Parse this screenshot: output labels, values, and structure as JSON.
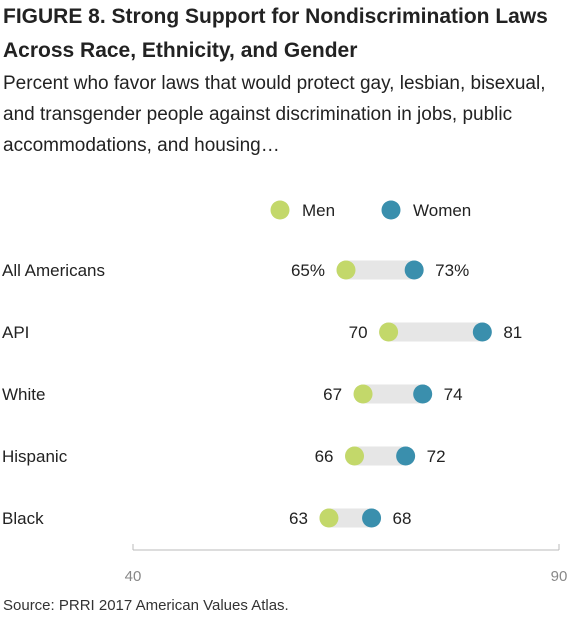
{
  "chart_data": {
    "type": "dumbbell",
    "title": "FIGURE 8.  Strong Support for Nondiscrimination Laws Across Race, Ethnicity, and Gender",
    "subtitle": "Percent who favor laws that would protect gay, lesbian, bisexual, and transgender people against discrimination in jobs, public accommodations, and housing…",
    "categories": [
      "All Americans",
      "API",
      "White",
      "Hispanic",
      "Black"
    ],
    "series": [
      {
        "name": "Men",
        "values": [
          65,
          70,
          67,
          66,
          63
        ],
        "labels": [
          "65%",
          "70",
          "67",
          "66",
          "63"
        ],
        "color": "#c3d86a"
      },
      {
        "name": "Women",
        "values": [
          73,
          81,
          74,
          72,
          68
        ],
        "labels": [
          "73%",
          "81",
          "74",
          "72",
          "68"
        ],
        "color": "#3a8fad"
      }
    ],
    "xlim": [
      40,
      90
    ],
    "xticks": [
      "40",
      "90"
    ],
    "legend_position": "top-center",
    "connector_color": "#e6e6e6",
    "grid": false,
    "source": "Source: PRRI 2017 American Values Atlas."
  }
}
